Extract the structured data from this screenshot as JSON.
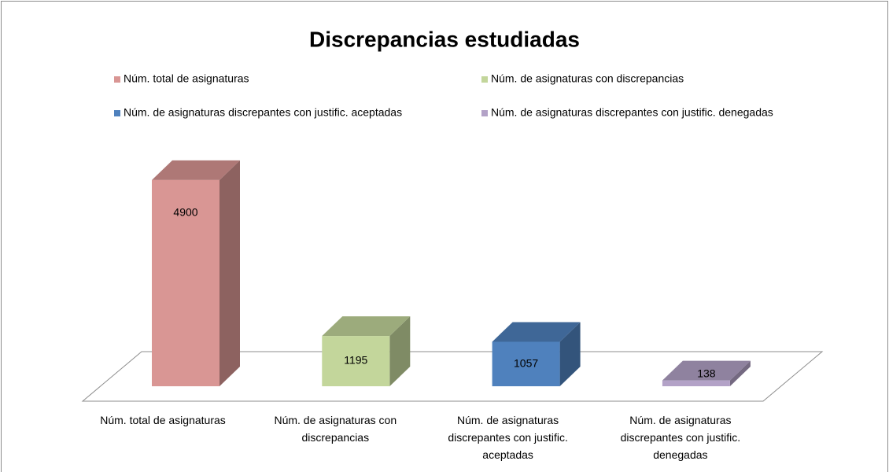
{
  "chart_data": {
    "type": "bar3d",
    "title": "Discrepancias estudiadas",
    "categories": [
      "Núm. total de asignaturas",
      "Núm. de asignaturas con discrepancias",
      "Núm. de asignaturas discrepantes con justific. aceptadas",
      "Núm. de asignaturas discrepantes con justific. denegadas"
    ],
    "values": [
      4900,
      1195,
      1057,
      138
    ],
    "colors": [
      "#d99694",
      "#c3d69b",
      "#4f81bd",
      "#b3a2c7"
    ]
  }
}
